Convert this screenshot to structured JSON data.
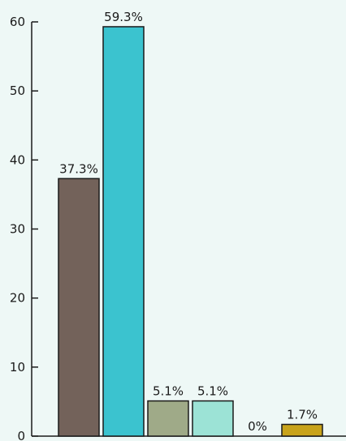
{
  "chart_data": {
    "type": "bar",
    "title": "",
    "xlabel": "",
    "ylabel": "",
    "ylim": [
      0,
      60
    ],
    "yticks": [
      0,
      10,
      20,
      30,
      40,
      50,
      60
    ],
    "grid": false,
    "categories": [
      "",
      "",
      "",
      "",
      "",
      ""
    ],
    "values": [
      37.3,
      59.3,
      5.1,
      5.1,
      0,
      1.7
    ],
    "data_labels": [
      "37.3%",
      "59.3%",
      "5.1%",
      "5.1%",
      "0%",
      "1.7%"
    ],
    "colors": [
      "#73625a",
      "#3bc3cf",
      "#9faa88",
      "#9ce3d6",
      "#9ce3d6",
      "#c8a31a"
    ]
  },
  "style": {
    "background": "#eef8f6",
    "axis_color": "#1a1a1a",
    "text_color": "#1a1a1a",
    "bar_stroke": "#1a1a1a"
  }
}
